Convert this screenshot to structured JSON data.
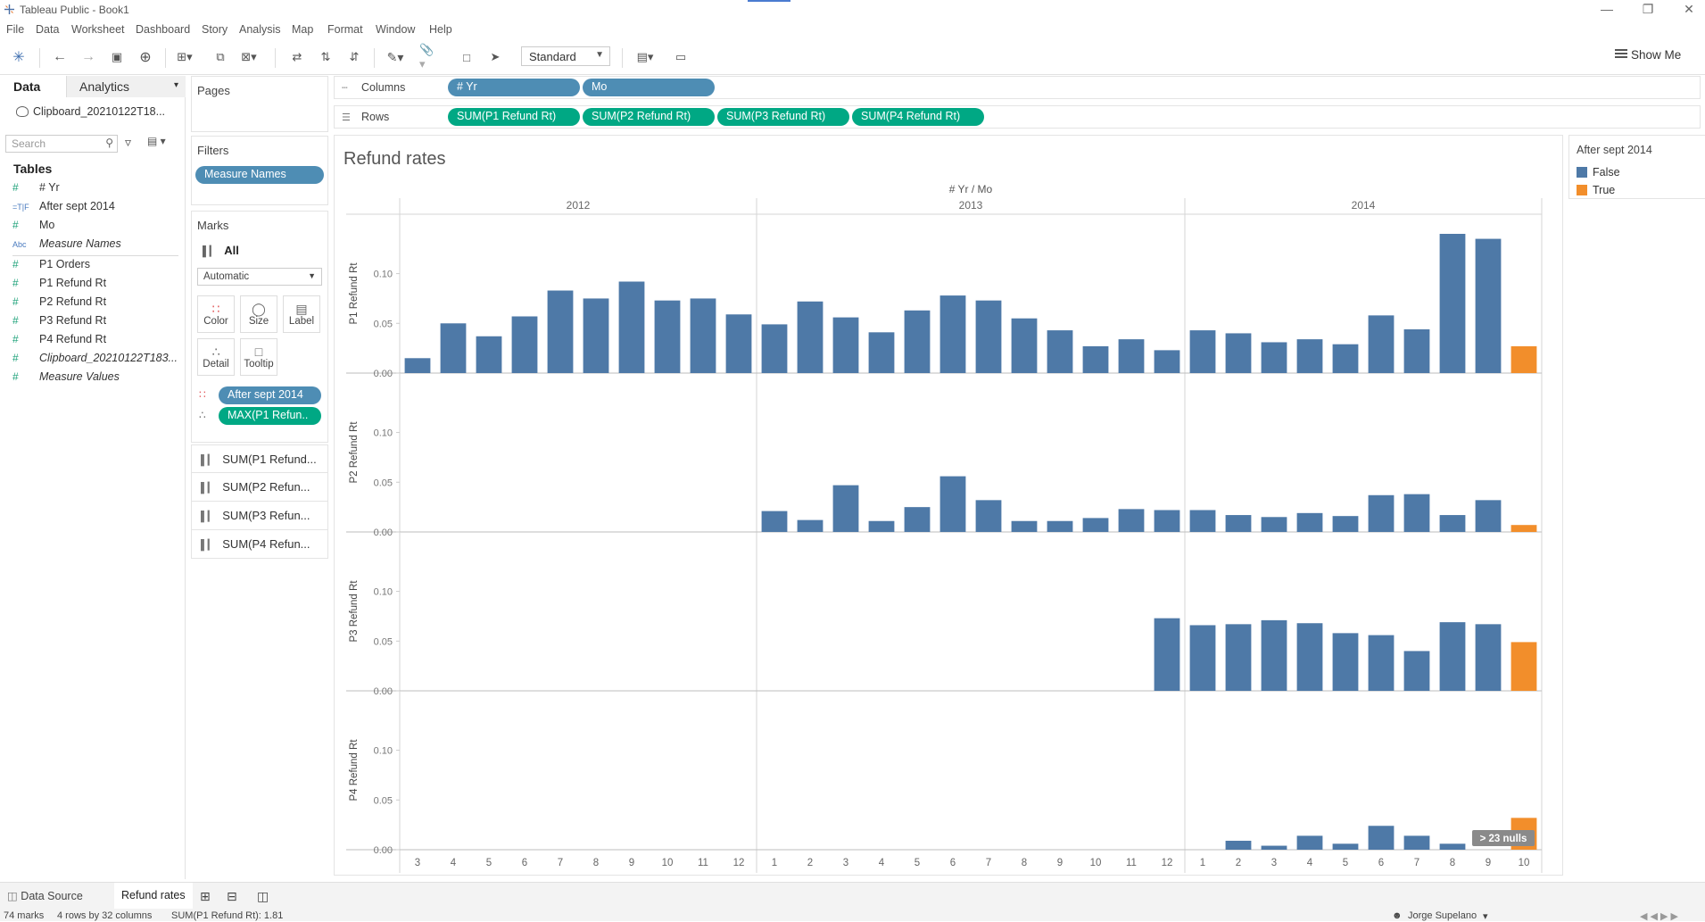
{
  "window": {
    "title": "Tableau Public - Book1"
  },
  "menu": [
    "File",
    "Data",
    "Worksheet",
    "Dashboard",
    "Story",
    "Analysis",
    "Map",
    "Format",
    "Window",
    "Help"
  ],
  "toolbar": {
    "fit_label": "Standard",
    "show_me_label": "Show Me"
  },
  "data_pane": {
    "tab_data": "Data",
    "tab_analytics": "Analytics",
    "source": "Clipboard_20210122T18...",
    "search_placeholder": "Search",
    "tables_heading": "Tables",
    "fields": [
      {
        "type": "#",
        "name": "# Yr",
        "italic": false
      },
      {
        "type": "=T|F",
        "name": "After sept 2014",
        "italic": false
      },
      {
        "type": "#",
        "name": "Mo",
        "italic": false
      },
      {
        "type": "Abc",
        "name": "Measure Names",
        "italic": true
      },
      {
        "type": "#",
        "name": "P1 Orders",
        "italic": false
      },
      {
        "type": "#",
        "name": "P1 Refund Rt",
        "italic": false
      },
      {
        "type": "#",
        "name": "P2 Refund Rt",
        "italic": false
      },
      {
        "type": "#",
        "name": "P3 Refund Rt",
        "italic": false
      },
      {
        "type": "#",
        "name": "P4 Refund Rt",
        "italic": false
      },
      {
        "type": "#",
        "name": "Clipboard_20210122T183...",
        "italic": true
      },
      {
        "type": "#",
        "name": "Measure Values",
        "italic": true
      }
    ]
  },
  "pages": {
    "heading": "Pages"
  },
  "filters": {
    "heading": "Filters",
    "pill": "Measure Names"
  },
  "marks": {
    "heading": "Marks",
    "all_label": "All",
    "mark_type": "Automatic",
    "buttons": [
      "Color",
      "Size",
      "Label",
      "Detail",
      "Tooltip"
    ],
    "color_field": "After sept 2014",
    "detail_field": "MAX(P1 Refun..",
    "measure_cards": [
      "SUM(P1 Refund...",
      "SUM(P2 Refun...",
      "SUM(P3 Refun...",
      "SUM(P4 Refun..."
    ]
  },
  "shelves": {
    "columns_label": "Columns",
    "rows_label": "Rows",
    "columns": [
      "# Yr",
      "Mo"
    ],
    "rows": [
      "SUM(P1 Refund Rt)",
      "SUM(P2 Refund Rt)",
      "SUM(P3 Refund Rt)",
      "SUM(P4 Refund Rt)"
    ]
  },
  "legend": {
    "title": "After sept 2014",
    "items": [
      {
        "label": "False",
        "color": "#4e79a7"
      },
      {
        "label": "True",
        "color": "#f28e2b"
      }
    ]
  },
  "sheet_tabs": {
    "data_source": "Data Source",
    "active": "Refund rates"
  },
  "status": {
    "marks": "74 marks",
    "dims": "4 rows by 32 columns",
    "sum": "SUM(P1 Refund Rt): 1.81",
    "user": "Jorge Supelano"
  },
  "chart_data": {
    "type": "bar",
    "title": "Refund rates",
    "column_header": "# Yr / Mo",
    "years": [
      {
        "year": "2012",
        "months": [
          "3",
          "4",
          "5",
          "6",
          "7",
          "8",
          "9",
          "10",
          "11",
          "12"
        ]
      },
      {
        "year": "2013",
        "months": [
          "1",
          "2",
          "3",
          "4",
          "5",
          "6",
          "7",
          "8",
          "9",
          "10",
          "11",
          "12"
        ]
      },
      {
        "year": "2014",
        "months": [
          "1",
          "2",
          "3",
          "4",
          "5",
          "6",
          "7",
          "8",
          "9",
          "10"
        ]
      }
    ],
    "yticks": [
      "0.00",
      "0.05",
      "0.10"
    ],
    "ylim": [
      0,
      0.14
    ],
    "null_indicator": "23 nulls",
    "colors": {
      "False": "#4e79a7",
      "True": "#f28e2b"
    },
    "series": [
      {
        "name": "P1 Refund Rt",
        "values": [
          0.015,
          0.05,
          0.037,
          0.057,
          0.083,
          0.075,
          0.092,
          0.073,
          0.075,
          0.059,
          0.049,
          0.072,
          0.056,
          0.041,
          0.063,
          0.078,
          0.073,
          0.055,
          0.043,
          0.027,
          0.034,
          0.023,
          0.043,
          0.04,
          0.031,
          0.034,
          0.029,
          0.058,
          0.044,
          0.14,
          0.135,
          0.027
        ]
      },
      {
        "name": "P2 Refund Rt",
        "values": [
          null,
          null,
          null,
          null,
          null,
          null,
          null,
          null,
          null,
          null,
          0.021,
          0.012,
          0.047,
          0.011,
          0.025,
          0.056,
          0.032,
          0.011,
          0.011,
          0.014,
          0.023,
          0.022,
          0.022,
          0.017,
          0.015,
          0.019,
          0.016,
          0.037,
          0.038,
          0.017,
          0.032,
          0.007
        ]
      },
      {
        "name": "P3 Refund Rt",
        "values": [
          null,
          null,
          null,
          null,
          null,
          null,
          null,
          null,
          null,
          null,
          null,
          null,
          null,
          null,
          null,
          null,
          null,
          null,
          null,
          null,
          null,
          0.073,
          0.066,
          0.067,
          0.071,
          0.068,
          0.058,
          0.056,
          0.04,
          0.069,
          0.067,
          0.049
        ]
      },
      {
        "name": "P4 Refund Rt",
        "values": [
          null,
          null,
          null,
          null,
          null,
          null,
          null,
          null,
          null,
          null,
          null,
          null,
          null,
          null,
          null,
          null,
          null,
          null,
          null,
          null,
          null,
          null,
          null,
          0.009,
          0.004,
          0.014,
          0.006,
          0.024,
          0.014,
          0.006,
          null,
          0.032
        ]
      }
    ],
    "true_index": 31
  }
}
